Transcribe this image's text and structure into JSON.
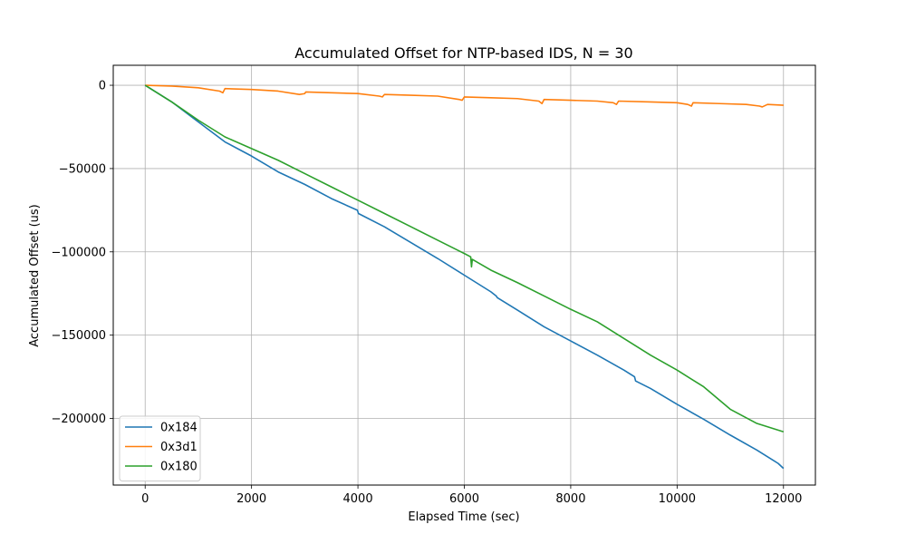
{
  "chart_data": {
    "type": "line",
    "title": "Accumulated Offset for NTP-based IDS, N = 30",
    "xlabel": "Elapsed Time (sec)",
    "ylabel": "Accumulated Offset (us)",
    "xlim": [
      -600,
      12600
    ],
    "ylim": [
      -240000,
      12000
    ],
    "xticks": [
      0,
      2000,
      4000,
      6000,
      8000,
      10000,
      12000
    ],
    "xtick_labels": [
      "0",
      "2000",
      "4000",
      "6000",
      "8000",
      "10000",
      "12000"
    ],
    "yticks": [
      0,
      -50000,
      -100000,
      -150000,
      -200000
    ],
    "ytick_labels": [
      "0",
      "−50000",
      "−100000",
      "−150000",
      "−200000"
    ],
    "grid": true,
    "legend_position": "lower-left",
    "series": [
      {
        "name": "0x184",
        "color": "#1f77b4",
        "x": [
          0,
          500,
          1000,
          1500,
          2000,
          2500,
          3000,
          3500,
          3990,
          4010,
          4500,
          5000,
          5500,
          6000,
          6500,
          6600,
          6620,
          7000,
          7500,
          8000,
          8500,
          9000,
          9200,
          9220,
          9500,
          10000,
          10500,
          11000,
          11500,
          11900,
          12000
        ],
        "y": [
          0,
          -10000,
          -22000,
          -34000,
          -42500,
          -52000,
          -59500,
          -68000,
          -75000,
          -77000,
          -85000,
          -94500,
          -104000,
          -114000,
          -124000,
          -126500,
          -127500,
          -135000,
          -145000,
          -153500,
          -162000,
          -171000,
          -175000,
          -177500,
          -182000,
          -191500,
          -200500,
          -210000,
          -219000,
          -227000,
          -230000
        ]
      },
      {
        "name": "0x3d1",
        "color": "#ff7f0e",
        "x": [
          0,
          500,
          1000,
          1400,
          1460,
          1500,
          2000,
          2500,
          2900,
          3000,
          3020,
          3500,
          4000,
          4400,
          4460,
          4500,
          5000,
          5500,
          5900,
          5960,
          6000,
          6500,
          7000,
          7400,
          7460,
          7500,
          8000,
          8500,
          8800,
          8860,
          8900,
          9500,
          10000,
          10200,
          10270,
          10300,
          10800,
          11300,
          11550,
          11600,
          11700,
          12000
        ],
        "y": [
          0,
          -500,
          -1500,
          -3500,
          -4500,
          -2000,
          -2500,
          -3500,
          -5500,
          -5000,
          -4000,
          -4500,
          -5000,
          -6500,
          -7000,
          -5500,
          -6000,
          -6500,
          -8500,
          -9000,
          -7000,
          -7500,
          -8000,
          -9500,
          -11000,
          -8500,
          -9000,
          -9500,
          -10500,
          -11500,
          -9500,
          -10000,
          -10500,
          -11500,
          -12500,
          -10500,
          -11000,
          -11500,
          -12500,
          -13000,
          -11500,
          -12000
        ]
      },
      {
        "name": "0x180",
        "color": "#2ca02c",
        "x": [
          0,
          500,
          1000,
          1500,
          2000,
          2500,
          3000,
          3500,
          4000,
          4500,
          5000,
          5500,
          6000,
          6120,
          6135,
          6150,
          6500,
          7000,
          7500,
          8000,
          8500,
          9000,
          9500,
          10000,
          10500,
          11000,
          11500,
          12000
        ],
        "y": [
          0,
          -10000,
          -21000,
          -31000,
          -38000,
          -45000,
          -53000,
          -61000,
          -69000,
          -77000,
          -85000,
          -93000,
          -101000,
          -103000,
          -109000,
          -104500,
          -111000,
          -118500,
          -126500,
          -134500,
          -142000,
          -152000,
          -162000,
          -171000,
          -181000,
          -194500,
          -203000,
          -208000
        ]
      }
    ]
  }
}
